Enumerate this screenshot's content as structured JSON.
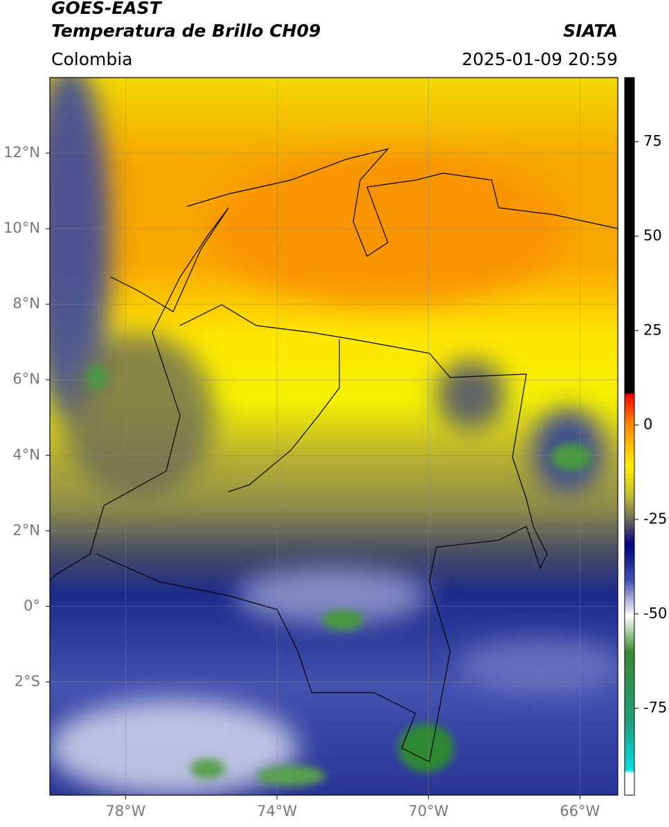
{
  "header": {
    "satellite": "GOES-EAST",
    "product": "Temperatura de Brillo CH09",
    "source": "SIATA",
    "region": "Colombia",
    "datetime": "2025-01-09 20:59"
  },
  "map": {
    "xlim": [
      -80,
      -65
    ],
    "ylim": [
      -5,
      14
    ],
    "xticks": [
      {
        "value": -78,
        "label": "78°W"
      },
      {
        "value": -74,
        "label": "74°W"
      },
      {
        "value": -70,
        "label": "70°W"
      },
      {
        "value": -66,
        "label": "66°W"
      }
    ],
    "yticks": [
      {
        "value": 12,
        "label": "12°N"
      },
      {
        "value": 10,
        "label": "10°N"
      },
      {
        "value": 8,
        "label": "8°N"
      },
      {
        "value": 6,
        "label": "6°N"
      },
      {
        "value": 4,
        "label": "4°N"
      },
      {
        "value": 2,
        "label": "2°N"
      },
      {
        "value": 0,
        "label": "0°"
      },
      {
        "value": -2,
        "label": "2°S"
      }
    ],
    "grid": true
  },
  "colorbar": {
    "lim": [
      -98,
      92
    ],
    "ticks": [
      75,
      50,
      25,
      0,
      -25,
      -50,
      -75
    ]
  }
}
